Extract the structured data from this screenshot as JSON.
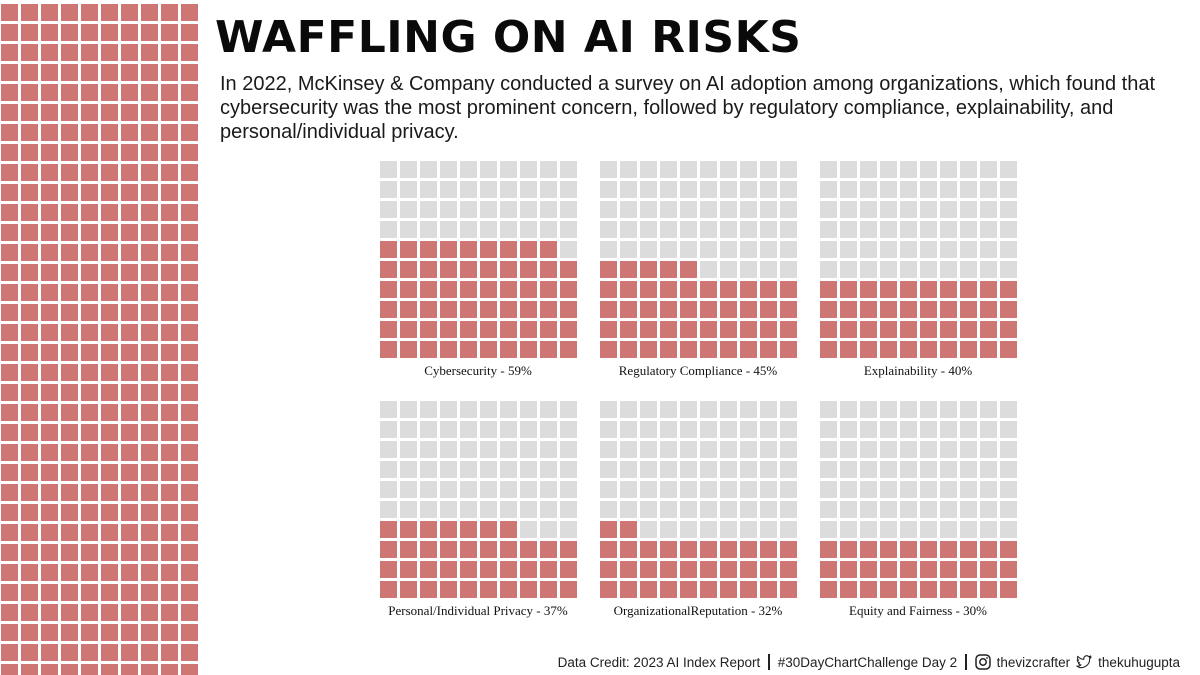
{
  "title": "WAFFLING ON AI RISKS",
  "subtitle": "In 2022, McKinsey & Company conducted a survey on AI adoption among organizations, which found that cybersecurity was the most prominent concern, followed by regulatory compliance, explainability, and personal/individual privacy.",
  "colors": {
    "filled": "#cd7674",
    "empty": "#dcdcdc",
    "text": "#111111"
  },
  "chart_data": [
    {
      "type": "waffle",
      "category": "Cybersecurity",
      "value": 59,
      "total": 100,
      "grid": [
        10,
        10
      ],
      "label": "Cybersecurity - 59%"
    },
    {
      "type": "waffle",
      "category": "Regulatory Compliance",
      "value": 45,
      "total": 100,
      "grid": [
        10,
        10
      ],
      "label": "Regulatory Compliance - 45%"
    },
    {
      "type": "waffle",
      "category": "Explainability",
      "value": 40,
      "total": 100,
      "grid": [
        10,
        10
      ],
      "label": "Explainability - 40%"
    },
    {
      "type": "waffle",
      "category": "Personal/Individual Privacy",
      "value": 37,
      "total": 100,
      "grid": [
        10,
        10
      ],
      "label": "Personal/Individual Privacy - 37%"
    },
    {
      "type": "waffle",
      "category": "OrganizationalReputation",
      "value": 32,
      "total": 100,
      "grid": [
        10,
        10
      ],
      "label": "OrganizationalReputation - 32%"
    },
    {
      "type": "waffle",
      "category": "Equity and Fairness",
      "value": 30,
      "total": 100,
      "grid": [
        10,
        10
      ],
      "label": "Equity and Fairness - 30%"
    }
  ],
  "footer": {
    "credit": "Data Credit: 2023 AI Index Report",
    "hashtag": "#30DayChartChallenge Day 2",
    "instagram_icon": "instagram-icon",
    "instagram": "thevizcrafter",
    "twitter_icon": "twitter-icon",
    "twitter": "thekuhugupta"
  }
}
